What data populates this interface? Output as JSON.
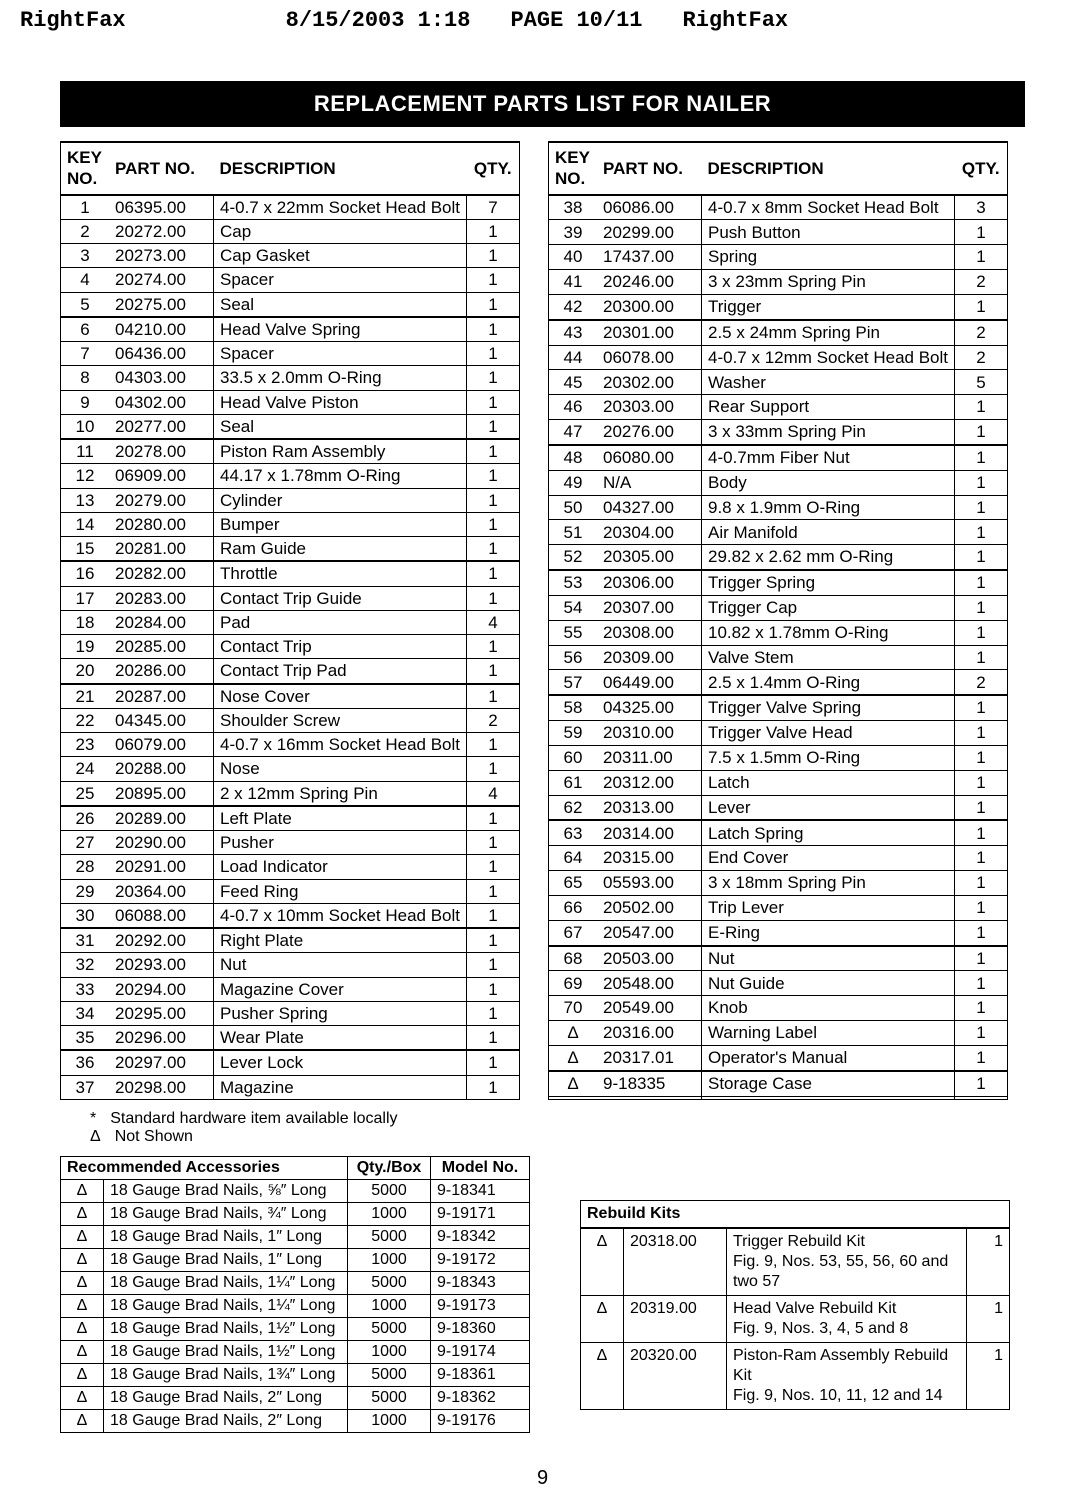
{
  "fax": {
    "left": "RightFax",
    "date": "8/15/2003 1:18",
    "page": "PAGE 10/11",
    "right": "RightFax"
  },
  "title": "REPLACEMENT PARTS LIST FOR NAILER",
  "parts_headers": {
    "key": "KEY NO.",
    "part": "PART NO.",
    "desc": "DESCRIPTION",
    "qty": "QTY."
  },
  "left_parts": [
    {
      "k": "1",
      "p": "06395.00",
      "d": "4-0.7 x 22mm Socket Head Bolt",
      "q": "7"
    },
    {
      "k": "2",
      "p": "20272.00",
      "d": "Cap",
      "q": "1"
    },
    {
      "k": "3",
      "p": "20273.00",
      "d": "Cap Gasket",
      "q": "1"
    },
    {
      "k": "4",
      "p": "20274.00",
      "d": "Spacer",
      "q": "1"
    },
    {
      "k": "5",
      "p": "20275.00",
      "d": "Seal",
      "q": "1"
    },
    {
      "k": "6",
      "p": "04210.00",
      "d": "Head Valve Spring",
      "q": "1",
      "sep": true
    },
    {
      "k": "7",
      "p": "06436.00",
      "d": "Spacer",
      "q": "1"
    },
    {
      "k": "8",
      "p": "04303.00",
      "d": "33.5 x 2.0mm O-Ring",
      "q": "1"
    },
    {
      "k": "9",
      "p": "04302.00",
      "d": "Head Valve Piston",
      "q": "1"
    },
    {
      "k": "10",
      "p": "20277.00",
      "d": "Seal",
      "q": "1"
    },
    {
      "k": "11",
      "p": "20278.00",
      "d": "Piston Ram Assembly",
      "q": "1",
      "sep": true
    },
    {
      "k": "12",
      "p": "06909.00",
      "d": "44.17 x 1.78mm O-Ring",
      "q": "1"
    },
    {
      "k": "13",
      "p": "20279.00",
      "d": "Cylinder",
      "q": "1"
    },
    {
      "k": "14",
      "p": "20280.00",
      "d": "Bumper",
      "q": "1"
    },
    {
      "k": "15",
      "p": "20281.00",
      "d": "Ram Guide",
      "q": "1"
    },
    {
      "k": "16",
      "p": "20282.00",
      "d": "Throttle",
      "q": "1",
      "sep": true
    },
    {
      "k": "17",
      "p": "20283.00",
      "d": "Contact Trip Guide",
      "q": "1"
    },
    {
      "k": "18",
      "p": "20284.00",
      "d": "Pad",
      "q": "4"
    },
    {
      "k": "19",
      "p": "20285.00",
      "d": "Contact Trip",
      "q": "1"
    },
    {
      "k": "20",
      "p": "20286.00",
      "d": "Contact Trip Pad",
      "q": "1"
    },
    {
      "k": "21",
      "p": "20287.00",
      "d": "Nose Cover",
      "q": "1",
      "sep": true
    },
    {
      "k": "22",
      "p": "04345.00",
      "d": "Shoulder Screw",
      "q": "2"
    },
    {
      "k": "23",
      "p": "06079.00",
      "d": "4-0.7 x 16mm Socket Head Bolt",
      "q": "1"
    },
    {
      "k": "24",
      "p": "20288.00",
      "d": "Nose",
      "q": "1"
    },
    {
      "k": "25",
      "p": "20895.00",
      "d": "2 x 12mm Spring Pin",
      "q": "4"
    },
    {
      "k": "26",
      "p": "20289.00",
      "d": "Left Plate",
      "q": "1",
      "sep": true
    },
    {
      "k": "27",
      "p": "20290.00",
      "d": "Pusher",
      "q": "1"
    },
    {
      "k": "28",
      "p": "20291.00",
      "d": "Load Indicator",
      "q": "1"
    },
    {
      "k": "29",
      "p": "20364.00",
      "d": "Feed Ring",
      "q": "1"
    },
    {
      "k": "30",
      "p": "06088.00",
      "d": "4-0.7 x 10mm Socket Head Bolt",
      "q": "1"
    },
    {
      "k": "31",
      "p": "20292.00",
      "d": "Right Plate",
      "q": "1",
      "sep": true
    },
    {
      "k": "32",
      "p": "20293.00",
      "d": "Nut",
      "q": "1"
    },
    {
      "k": "33",
      "p": "20294.00",
      "d": "Magazine Cover",
      "q": "1"
    },
    {
      "k": "34",
      "p": "20295.00",
      "d": "Pusher Spring",
      "q": "1"
    },
    {
      "k": "35",
      "p": "20296.00",
      "d": "Wear Plate",
      "q": "1"
    },
    {
      "k": "36",
      "p": "20297.00",
      "d": "Lever Lock",
      "q": "1",
      "sep": true
    },
    {
      "k": "37",
      "p": "20298.00",
      "d": "Magazine",
      "q": "1"
    }
  ],
  "right_parts": [
    {
      "k": "38",
      "p": "06086.00",
      "d": "4-0.7 x 8mm Socket Head Bolt",
      "q": "3"
    },
    {
      "k": "39",
      "p": "20299.00",
      "d": "Push Button",
      "q": "1"
    },
    {
      "k": "40",
      "p": "17437.00",
      "d": "Spring",
      "q": "1"
    },
    {
      "k": "41",
      "p": "20246.00",
      "d": "3 x 23mm Spring Pin",
      "q": "2"
    },
    {
      "k": "42",
      "p": "20300.00",
      "d": "Trigger",
      "q": "1"
    },
    {
      "k": "43",
      "p": "20301.00",
      "d": "2.5 x 24mm Spring Pin",
      "q": "2",
      "sep": true
    },
    {
      "k": "44",
      "p": "06078.00",
      "d": "4-0.7 x 12mm Socket Head Bolt",
      "q": "2"
    },
    {
      "k": "45",
      "p": "20302.00",
      "d": "Washer",
      "q": "5"
    },
    {
      "k": "46",
      "p": "20303.00",
      "d": "Rear Support",
      "q": "1"
    },
    {
      "k": "47",
      "p": "20276.00",
      "d": "3 x 33mm Spring Pin",
      "q": "1"
    },
    {
      "k": "48",
      "p": "06080.00",
      "d": "4-0.7mm Fiber Nut",
      "q": "1",
      "sep": true
    },
    {
      "k": "49",
      "p": "N/A",
      "d": "Body",
      "q": "1"
    },
    {
      "k": "50",
      "p": "04327.00",
      "d": "9.8 x 1.9mm O-Ring",
      "q": "1"
    },
    {
      "k": "51",
      "p": "20304.00",
      "d": "Air Manifold",
      "q": "1"
    },
    {
      "k": "52",
      "p": "20305.00",
      "d": "29.82 x 2.62 mm O-Ring",
      "q": "1"
    },
    {
      "k": "53",
      "p": "20306.00",
      "d": "Trigger Spring",
      "q": "1",
      "sep": true
    },
    {
      "k": "54",
      "p": "20307.00",
      "d": "Trigger Cap",
      "q": "1"
    },
    {
      "k": "55",
      "p": "20308.00",
      "d": "10.82 x 1.78mm O-Ring",
      "q": "1"
    },
    {
      "k": "56",
      "p": "20309.00",
      "d": "Valve Stem",
      "q": "1"
    },
    {
      "k": "57",
      "p": "06449.00",
      "d": "2.5 x 1.4mm O-Ring",
      "q": "2"
    },
    {
      "k": "58",
      "p": "04325.00",
      "d": "Trigger Valve Spring",
      "q": "1",
      "sep": true
    },
    {
      "k": "59",
      "p": "20310.00",
      "d": "Trigger Valve Head",
      "q": "1"
    },
    {
      "k": "60",
      "p": "20311.00",
      "d": "7.5 x 1.5mm O-Ring",
      "q": "1"
    },
    {
      "k": "61",
      "p": "20312.00",
      "d": "Latch",
      "q": "1"
    },
    {
      "k": "62",
      "p": "20313.00",
      "d": "Lever",
      "q": "1"
    },
    {
      "k": "63",
      "p": "20314.00",
      "d": "Latch Spring",
      "q": "1",
      "sep": true
    },
    {
      "k": "64",
      "p": "20315.00",
      "d": "End Cover",
      "q": "1"
    },
    {
      "k": "65",
      "p": "05593.00",
      "d": "3 x 18mm Spring Pin",
      "q": "1"
    },
    {
      "k": "66",
      "p": "20502.00",
      "d": "Trip Lever",
      "q": "1"
    },
    {
      "k": "67",
      "p": "20547.00",
      "d": "E-Ring",
      "q": "1"
    },
    {
      "k": "68",
      "p": "20503.00",
      "d": "Nut",
      "q": "1",
      "sep": true
    },
    {
      "k": "69",
      "p": "20548.00",
      "d": "Nut Guide",
      "q": "1"
    },
    {
      "k": "70",
      "p": "20549.00",
      "d": "Knob",
      "q": "1"
    },
    {
      "k": "Δ",
      "p": "20316.00",
      "d": "Warning Label",
      "q": "1"
    },
    {
      "k": "Δ",
      "p": "20317.01",
      "d": "Operator's Manual",
      "q": "1"
    },
    {
      "k": "Δ",
      "p": "9-18335",
      "d": "Storage Case",
      "q": "1",
      "sep": true
    },
    {
      "k": "",
      "p": "",
      "d": "",
      "q": ""
    }
  ],
  "footnotes": {
    "star_sym": "*",
    "star_text": "Standard hardware item available locally",
    "delta_sym": "Δ",
    "delta_text": "Not Shown"
  },
  "acc_headers": {
    "title": "Recommended Accessories",
    "qty": "Qty./Box",
    "model": "Model No."
  },
  "accessories": [
    {
      "s": "Δ",
      "d": "18 Gauge Brad Nails, ⅝″ Long",
      "q": "5000",
      "m": "9-18341"
    },
    {
      "s": "Δ",
      "d": "18 Gauge Brad Nails, ¾″ Long",
      "q": "1000",
      "m": "9-19171"
    },
    {
      "s": "Δ",
      "d": "18 Gauge Brad Nails, 1″ Long",
      "q": "5000",
      "m": "9-18342"
    },
    {
      "s": "Δ",
      "d": "18 Gauge Brad Nails, 1″ Long",
      "q": "1000",
      "m": "9-19172"
    },
    {
      "s": "Δ",
      "d": "18 Gauge Brad Nails, 1¼″ Long",
      "q": "5000",
      "m": "9-18343"
    },
    {
      "s": "Δ",
      "d": "18 Gauge Brad Nails, 1¼″ Long",
      "q": "1000",
      "m": "9-19173"
    },
    {
      "s": "Δ",
      "d": "18 Gauge Brad Nails, 1½″ Long",
      "q": "5000",
      "m": "9-18360"
    },
    {
      "s": "Δ",
      "d": "18 Gauge Brad Nails, 1½″ Long",
      "q": "1000",
      "m": "9-19174"
    },
    {
      "s": "Δ",
      "d": "18 Gauge Brad Nails, 1¾″ Long",
      "q": "5000",
      "m": "9-18361"
    },
    {
      "s": "Δ",
      "d": "18 Gauge Brad Nails, 2″ Long",
      "q": "5000",
      "m": "9-18362"
    },
    {
      "s": "Δ",
      "d": "18 Gauge Brad Nails, 2″ Long",
      "q": "1000",
      "m": "9-19176"
    }
  ],
  "kits_title": "Rebuild Kits",
  "kits": [
    {
      "s": "Δ",
      "p": "20318.00",
      "d": "Trigger Rebuild Kit\nFig. 9, Nos. 53, 55, 56, 60 and two 57",
      "q": "1"
    },
    {
      "s": "Δ",
      "p": "20319.00",
      "d": "Head Valve Rebuild Kit\nFig. 9, Nos. 3, 4, 5 and 8",
      "q": "1"
    },
    {
      "s": "Δ",
      "p": "20320.00",
      "d": "Piston-Ram Assembly Rebuild Kit\nFig. 9, Nos. 10, 11, 12 and 14",
      "q": "1"
    }
  ],
  "page_number": "9"
}
